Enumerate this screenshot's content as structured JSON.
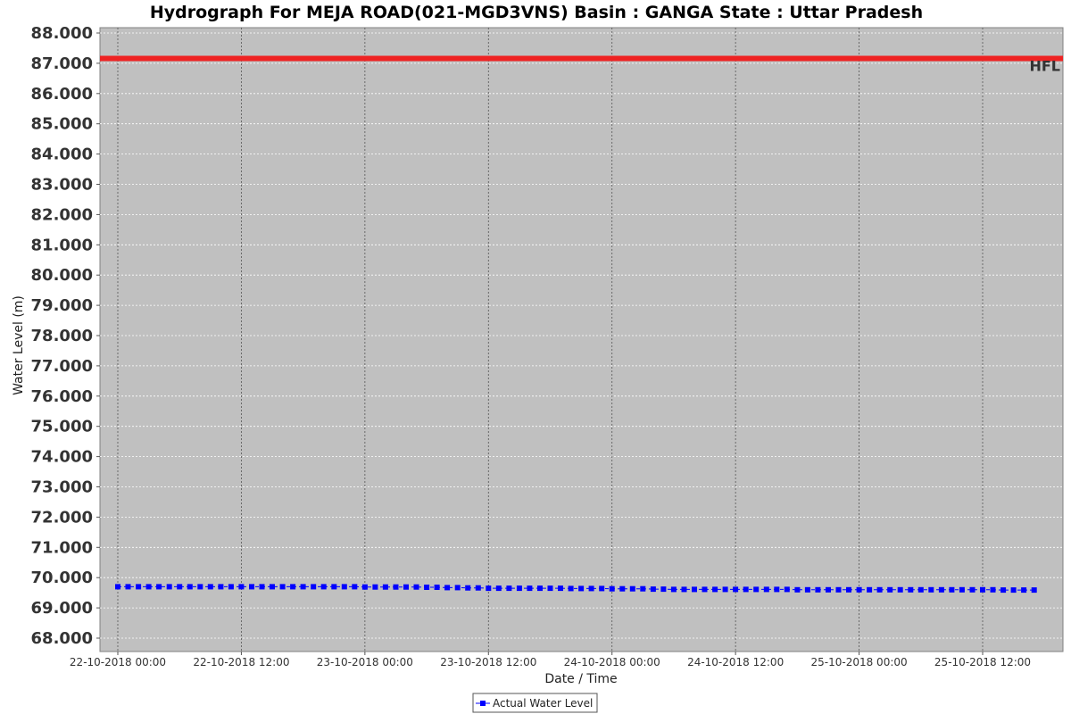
{
  "chart_data": {
    "type": "line",
    "title": "Hydrograph For MEJA ROAD(021-MGD3VNS) Basin : GANGA State : Uttar Pradesh",
    "xlabel": "Date / Time",
    "ylabel": "Water Level (m)",
    "ylim": [
      67.6,
      88.2
    ],
    "yticks": [
      "88.000",
      "87.000",
      "86.000",
      "85.000",
      "84.000",
      "83.000",
      "82.000",
      "81.000",
      "80.000",
      "79.000",
      "78.000",
      "77.000",
      "76.000",
      "75.000",
      "74.000",
      "73.000",
      "72.000",
      "71.000",
      "70.000",
      "69.000",
      "68.000"
    ],
    "xticks": [
      "22-10-2018 00:00",
      "22-10-2018 12:00",
      "23-10-2018 00:00",
      "23-10-2018 12:00",
      "24-10-2018 00:00",
      "24-10-2018 12:00",
      "25-10-2018 00:00",
      "25-10-2018 12:00"
    ],
    "x_start": "2018-10-22 00:00",
    "x_end": "2018-10-25 18:00",
    "reference_lines": [
      {
        "name": "HFL",
        "value": 87.16,
        "color": "#ee2222"
      }
    ],
    "grid": true,
    "legend_position": "bottom",
    "series": [
      {
        "name": "Actual Water Level",
        "color": "#0000ff",
        "marker": "square",
        "interval_hours": 1,
        "values": [
          69.7,
          69.7,
          69.7,
          69.7,
          69.7,
          69.7,
          69.7,
          69.7,
          69.7,
          69.7,
          69.7,
          69.7,
          69.7,
          69.7,
          69.7,
          69.7,
          69.7,
          69.7,
          69.7,
          69.7,
          69.7,
          69.7,
          69.7,
          69.7,
          69.69,
          69.69,
          69.69,
          69.69,
          69.69,
          69.69,
          69.68,
          69.68,
          69.67,
          69.67,
          69.66,
          69.66,
          69.65,
          69.65,
          69.65,
          69.65,
          69.65,
          69.65,
          69.65,
          69.65,
          69.64,
          69.64,
          69.64,
          69.64,
          69.63,
          69.63,
          69.63,
          69.63,
          69.62,
          69.62,
          69.61,
          69.61,
          69.61,
          69.61,
          69.61,
          69.61,
          69.61,
          69.61,
          69.61,
          69.61,
          69.61,
          69.61,
          69.6,
          69.6,
          69.6,
          69.6,
          69.6,
          69.6,
          69.6,
          69.6,
          69.6,
          69.6,
          69.6,
          69.6,
          69.6,
          69.6,
          69.6,
          69.6,
          69.6,
          69.6,
          69.6,
          69.6,
          69.59,
          69.59,
          69.59,
          69.59
        ]
      }
    ]
  }
}
